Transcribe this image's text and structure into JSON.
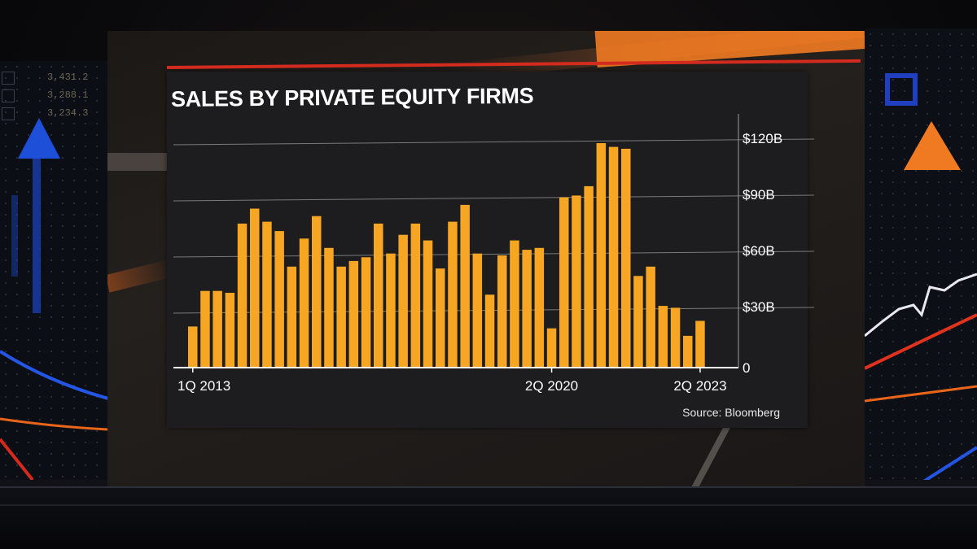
{
  "chart_data": {
    "type": "bar",
    "title": "SALES BY PRIVATE EQUITY FIRMS",
    "source": "Source: Bloomberg",
    "x_ticks": [
      "1Q 2013",
      "2Q 2020",
      "2Q 2023"
    ],
    "x_tick_index": [
      0,
      29,
      41
    ],
    "y_ticks": [
      "0",
      "$30B",
      "$60B",
      "$90B",
      "$120B"
    ],
    "y_tick_values": [
      0,
      30,
      60,
      90,
      120
    ],
    "ylim": [
      0,
      125
    ],
    "values": [
      22,
      41,
      41,
      40,
      77,
      85,
      78,
      73,
      54,
      69,
      81,
      64,
      54,
      57,
      59,
      77,
      61,
      71,
      77,
      68,
      53,
      78,
      87,
      61,
      39,
      60,
      68,
      63,
      64,
      21,
      91,
      92,
      97,
      120,
      118,
      117,
      49,
      54,
      33,
      32,
      17,
      25
    ],
    "bar_color": "#f6a623",
    "grid": true
  },
  "background": {
    "ticker_values": [
      "3,431.2",
      "3,288.1",
      "3,234.3"
    ]
  }
}
